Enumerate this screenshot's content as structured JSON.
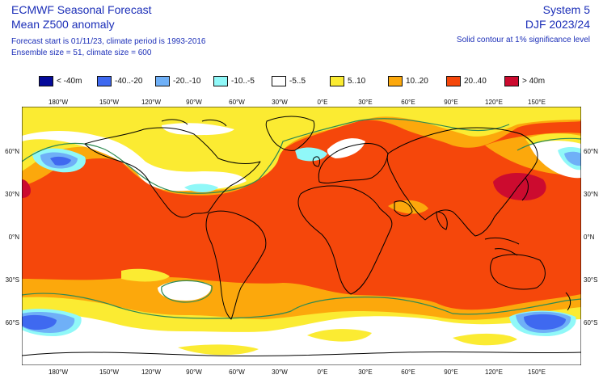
{
  "header": {
    "title": "ECMWF Seasonal Forecast",
    "subtitle": "Mean Z500 anomaly",
    "forecast_info": "Forecast start is 01/11/23, climate period is 1993-2016",
    "ensemble_info": "Ensemble size = 51, climate size = 600",
    "system": "System 5",
    "period": "DJF 2023/24",
    "contour_note": "Solid contour at 1% significance level"
  },
  "legend": [
    {
      "label": "< -40m",
      "color": "#050a9a"
    },
    {
      "label": "-40..-20",
      "color": "#3f69f0"
    },
    {
      "label": "-20..-10",
      "color": "#6fb0f7"
    },
    {
      "label": "-10..-5",
      "color": "#90f8f8"
    },
    {
      "label": "-5..5",
      "color": "#ffffff"
    },
    {
      "label": "5..10",
      "color": "#fbeb32"
    },
    {
      "label": "10..20",
      "color": "#fca80c"
    },
    {
      "label": "20..40",
      "color": "#f5470b"
    },
    {
      "label": "> 40m",
      "color": "#cc0b2f"
    }
  ],
  "lon_labels": [
    "180°W",
    "150°W",
    "120°W",
    "90°W",
    "60°W",
    "30°W",
    "0°E",
    "30°E",
    "60°E",
    "90°E",
    "120°E",
    "150°E"
  ],
  "lat_labels": [
    "60°N",
    "30°N",
    "0°N",
    "30°S",
    "60°S"
  ]
}
